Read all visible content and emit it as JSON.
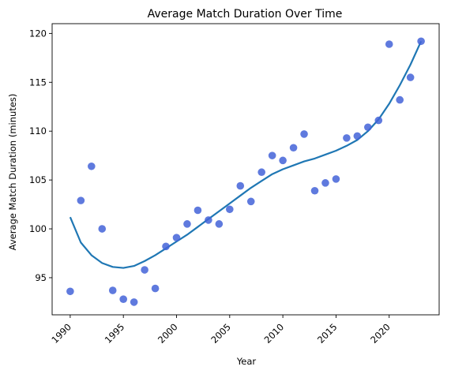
{
  "chart_data": {
    "type": "scatter",
    "title": "Average Match Duration Over Time",
    "xlabel": "Year",
    "ylabel": "Average Match Duration (minutes)",
    "xlim": [
      1988.3,
      2024.7
    ],
    "ylim": [
      91.2,
      121.0
    ],
    "xticks": [
      1990,
      1995,
      2000,
      2005,
      2010,
      2015,
      2020
    ],
    "yticks": [
      95,
      100,
      105,
      110,
      115,
      120
    ],
    "grid": false,
    "legend": "none",
    "point_color": "#4363d8",
    "line_color": "#1f77b4",
    "points": {
      "x": [
        1990,
        1991,
        1992,
        1993,
        1994,
        1995,
        1996,
        1997,
        1998,
        1999,
        2000,
        2001,
        2002,
        2003,
        2004,
        2005,
        2006,
        2007,
        2008,
        2009,
        2010,
        2011,
        2012,
        2013,
        2014,
        2015,
        2016,
        2017,
        2018,
        2019,
        2020,
        2021,
        2022,
        2023
      ],
      "y": [
        93.6,
        102.9,
        106.4,
        100.0,
        93.7,
        92.8,
        92.5,
        95.8,
        93.9,
        98.2,
        99.1,
        100.5,
        101.9,
        100.9,
        100.5,
        102.0,
        104.4,
        102.8,
        105.8,
        107.5,
        107.0,
        108.3,
        109.7,
        103.9,
        104.7,
        105.1,
        109.3,
        109.5,
        110.4,
        111.1,
        118.9,
        113.2,
        115.5,
        119.2
      ]
    },
    "trend": {
      "x": [
        1990,
        1991,
        1992,
        1993,
        1994,
        1995,
        1996,
        1997,
        1998,
        1999,
        2000,
        2001,
        2002,
        2003,
        2004,
        2005,
        2006,
        2007,
        2008,
        2009,
        2010,
        2011,
        2012,
        2013,
        2014,
        2015,
        2016,
        2017,
        2018,
        2019,
        2020,
        2021,
        2022,
        2023
      ],
      "y": [
        101.2,
        98.6,
        97.3,
        96.5,
        96.1,
        96.0,
        96.2,
        96.7,
        97.3,
        98.0,
        98.7,
        99.4,
        100.2,
        101.0,
        101.8,
        102.6,
        103.4,
        104.2,
        104.9,
        105.6,
        106.1,
        106.5,
        106.9,
        107.2,
        107.6,
        108.0,
        108.5,
        109.1,
        110.0,
        111.2,
        112.8,
        114.7,
        116.8,
        119.2
      ]
    }
  }
}
